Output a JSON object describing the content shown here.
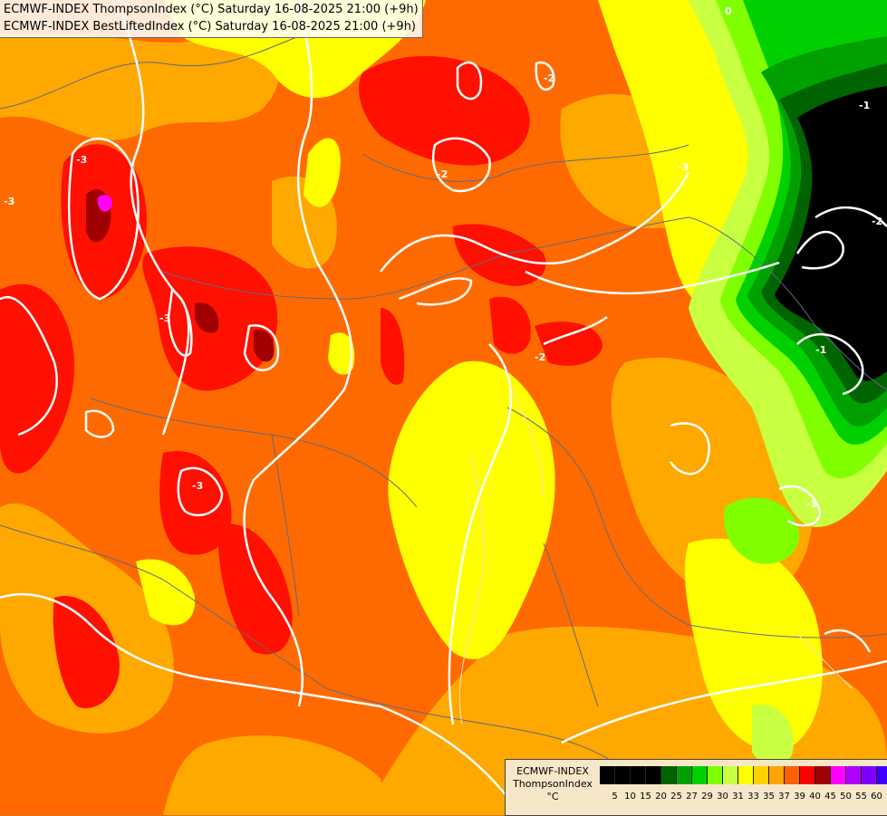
{
  "header": {
    "line1": "ECMWF-INDEX ThompsonIndex (°C) Saturday 16-08-2025 21:00 (+9h)",
    "line2": "ECMWF-INDEX BestLiftedIndex (°C) Saturday 16-08-2025 21:00 (+9h)"
  },
  "legend": {
    "model": "ECMWF-INDEX",
    "variable": "ThompsonIndex",
    "unit": "°C",
    "ticks": [
      "5",
      "10",
      "15",
      "20",
      "25",
      "27",
      "29",
      "30",
      "31",
      "33",
      "35",
      "37",
      "39",
      "40",
      "45",
      "50",
      "55",
      "60"
    ],
    "colors": [
      "#000000",
      "#000000",
      "#000000",
      "#000000",
      "#006400",
      "#00a000",
      "#00d000",
      "#80ff00",
      "#c8ff40",
      "#ffff00",
      "#ffd200",
      "#ffa500",
      "#ff6000",
      "#ff0000",
      "#a00000",
      "#ff00ff",
      "#b000ff",
      "#8000ff",
      "#4000ff",
      "#0000ff"
    ]
  },
  "contour_labels": [
    "-3",
    "-3",
    "-3",
    "-2",
    "-2",
    "-3",
    "-2",
    "-3",
    "-1",
    "-2",
    "-1",
    "-1",
    "0"
  ]
}
